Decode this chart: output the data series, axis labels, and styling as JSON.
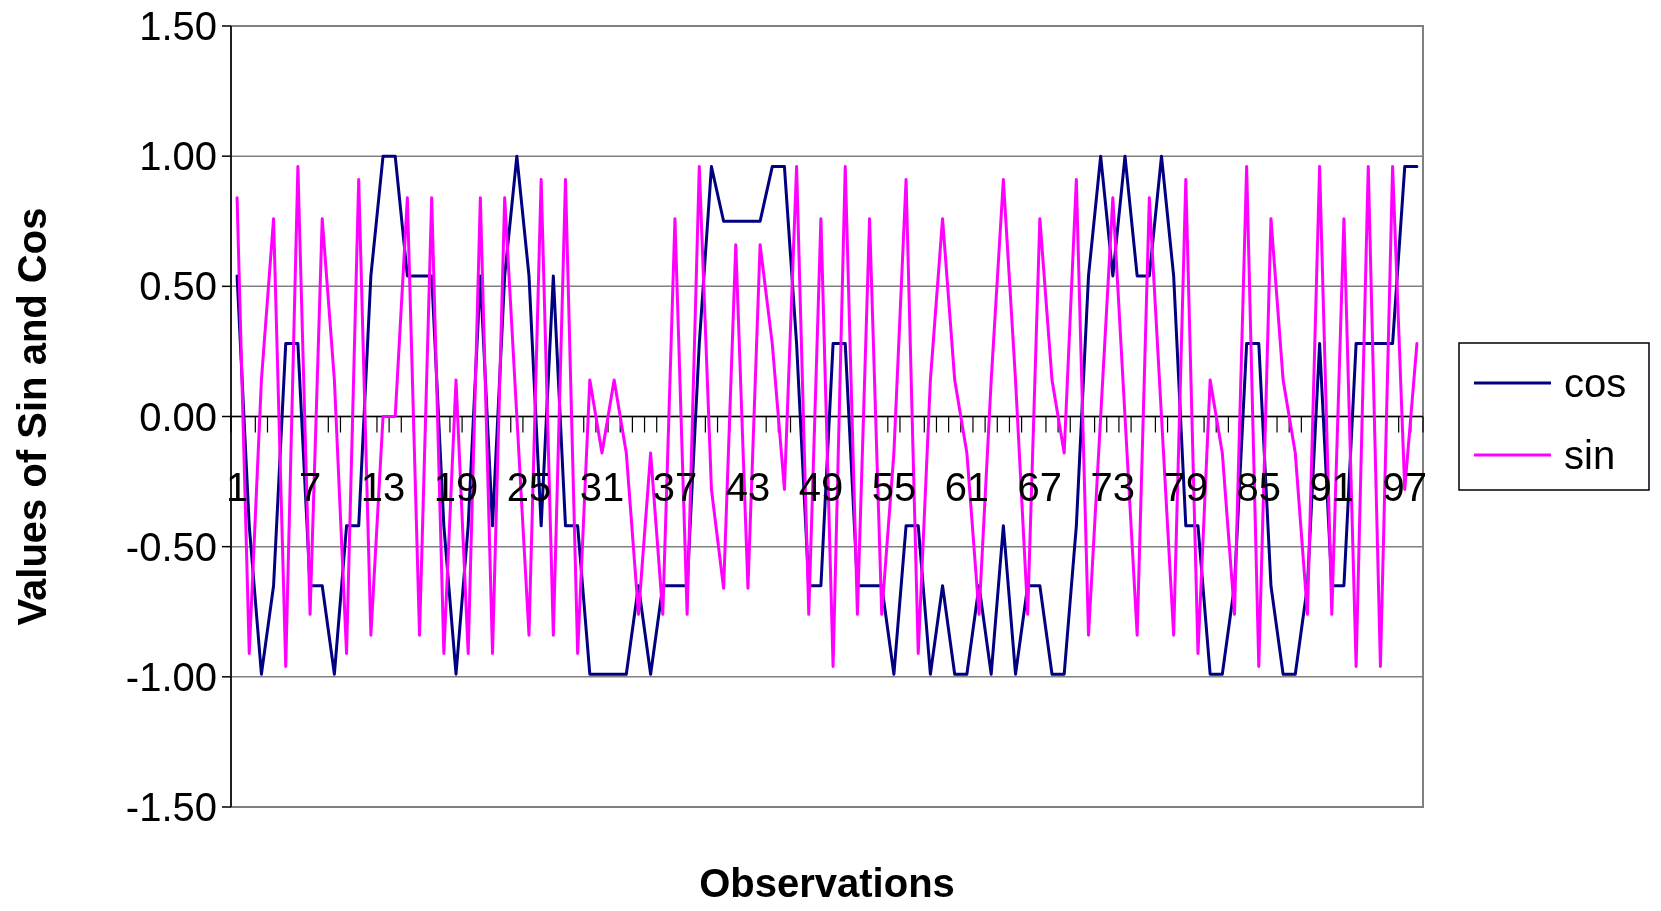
{
  "chart_data": {
    "type": "line",
    "xlabel": "Observations",
    "ylabel": "Values of Sin and Cos",
    "categories": [
      "1",
      null,
      null,
      null,
      null,
      null,
      "7",
      null,
      null,
      null,
      null,
      null,
      "13",
      null,
      null,
      null,
      null,
      null,
      "19",
      null,
      null,
      null,
      null,
      null,
      "25",
      null,
      null,
      null,
      null,
      null,
      "31",
      null,
      null,
      null,
      null,
      null,
      "37",
      null,
      null,
      null,
      null,
      null,
      "43",
      null,
      null,
      null,
      null,
      null,
      "49",
      null,
      null,
      null,
      null,
      null,
      "55",
      null,
      null,
      null,
      null,
      null,
      "61",
      null,
      null,
      null,
      null,
      null,
      "67",
      null,
      null,
      null,
      null,
      null,
      "73",
      null,
      null,
      null,
      null,
      null,
      "79",
      null,
      null,
      null,
      null,
      null,
      "85",
      null,
      null,
      null,
      null,
      null,
      "91",
      null,
      null,
      null,
      null,
      null,
      "97",
      null
    ],
    "series": [
      {
        "name": "cos",
        "color": "#000080",
        "values": [
          0.54,
          -0.42,
          -0.99,
          -0.65,
          0.28,
          0.28,
          -0.65,
          -0.65,
          -0.99,
          -0.42,
          -0.42,
          0.54,
          1,
          1,
          0.54,
          0.54,
          0.54,
          -0.42,
          -0.99,
          -0.42,
          0.54,
          -0.42,
          0.54,
          1,
          0.54,
          -0.42,
          0.54,
          -0.42,
          -0.42,
          -0.99,
          -0.99,
          -0.99,
          -0.99,
          -0.65,
          -0.99,
          -0.65,
          -0.65,
          -0.65,
          0.28,
          0.96,
          0.75,
          0.75,
          0.75,
          0.75,
          0.96,
          0.96,
          0.28,
          -0.65,
          -0.65,
          0.28,
          0.28,
          -0.65,
          -0.65,
          -0.65,
          -0.99,
          -0.42,
          -0.42,
          -0.99,
          -0.65,
          -0.99,
          -0.99,
          -0.65,
          -0.99,
          -0.42,
          -0.99,
          -0.65,
          -0.65,
          -0.99,
          -0.99,
          -0.42,
          0.54,
          1,
          0.54,
          1,
          0.54,
          0.54,
          1,
          0.54,
          -0.42,
          -0.42,
          -0.99,
          -0.99,
          -0.65,
          0.28,
          0.28,
          -0.65,
          -0.99,
          -0.99,
          -0.65,
          0.28,
          -0.65,
          -0.65,
          0.28,
          0.28,
          0.28,
          0.28,
          0.96,
          0.96
        ]
      },
      {
        "name": "sin",
        "color": "#ff00ff",
        "values": [
          0.84,
          -0.91,
          0.14,
          0.76,
          -0.96,
          0.96,
          -0.76,
          0.76,
          0.14,
          -0.91,
          0.91,
          -0.84,
          0,
          0,
          0.84,
          -0.84,
          0.84,
          -0.91,
          0.14,
          -0.91,
          0.84,
          -0.91,
          0.84,
          0,
          -0.84,
          0.91,
          -0.84,
          0.91,
          -0.91,
          0.14,
          -0.14,
          0.14,
          -0.14,
          -0.76,
          -0.14,
          -0.76,
          0.76,
          -0.76,
          0.96,
          -0.28,
          -0.66,
          0.66,
          -0.66,
          0.66,
          0.28,
          -0.28,
          0.96,
          -0.76,
          0.76,
          -0.96,
          0.96,
          -0.76,
          0.76,
          -0.76,
          -0.14,
          0.91,
          -0.91,
          0.14,
          0.76,
          0.14,
          -0.14,
          -0.76,
          0.14,
          0.91,
          0.14,
          -0.76,
          0.76,
          0.14,
          -0.14,
          0.91,
          -0.84,
          0,
          0.84,
          0,
          -0.84,
          0.84,
          0,
          -0.84,
          0.91,
          -0.91,
          0.14,
          -0.14,
          -0.76,
          0.96,
          -0.96,
          0.76,
          0.14,
          -0.14,
          -0.76,
          0.96,
          -0.76,
          0.76,
          -0.96,
          0.96,
          -0.96,
          0.96,
          -0.28,
          0.28
        ]
      }
    ],
    "ylim": [
      -1.5,
      1.5
    ],
    "yticks": [
      {
        "value": -1.5,
        "label": "-1.50"
      },
      {
        "value": -1,
        "label": "-1.00"
      },
      {
        "value": -0.5,
        "label": "-0.50"
      },
      {
        "value": 0,
        "label": "0.00"
      },
      {
        "value": 0.5,
        "label": "0.50"
      },
      {
        "value": 1,
        "label": "1.00"
      },
      {
        "value": 1.5,
        "label": "1.50"
      }
    ],
    "grid": "y",
    "legend": "right",
    "marker": "none",
    "line_style": "solid"
  }
}
